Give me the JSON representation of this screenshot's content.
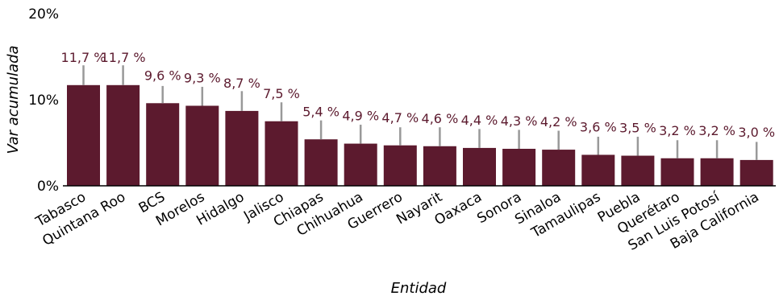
{
  "chart_data": {
    "type": "bar",
    "xlabel": "Entidad",
    "ylabel": "Var acumulada",
    "ylim": [
      0,
      20
    ],
    "yticks": [
      {
        "value": 0,
        "label": "0%"
      },
      {
        "value": 10,
        "label": "10%"
      },
      {
        "value": 20,
        "label": "20%"
      }
    ],
    "grid": false,
    "bar_color": "#5c1a2e",
    "errorbar_color": "#999999",
    "categories": [
      "Tabasco",
      "Quintana Roo",
      "BCS",
      "Morelos",
      "Hidalgo",
      "Jalisco",
      "Chiapas",
      "Chihuahua",
      "Guerrero",
      "Nayarit",
      "Oaxaca",
      "Sonora",
      "Sinaloa",
      "Tamaulipas",
      "Puebla",
      "Querétaro",
      "San Luis Potosí",
      "Baja California"
    ],
    "values": [
      11.7,
      11.7,
      9.6,
      9.3,
      8.7,
      7.5,
      5.4,
      4.9,
      4.7,
      4.6,
      4.4,
      4.3,
      4.2,
      3.6,
      3.5,
      3.2,
      3.2,
      3.0
    ],
    "error_upper": [
      14.0,
      14.0,
      11.6,
      11.5,
      11.0,
      9.7,
      7.6,
      7.1,
      6.8,
      6.8,
      6.6,
      6.5,
      6.4,
      5.7,
      5.7,
      5.3,
      5.3,
      5.1
    ],
    "data_labels": [
      "11,7 %",
      "11,7 %",
      "9,6 %",
      "9,3 %",
      "8,7 %",
      "7,5 %",
      "5,4 %",
      "4,9 %",
      "4,7 %",
      "4,6 %",
      "4,4 %",
      "4,3 %",
      "4,2 %",
      "3,6 %",
      "3,5 %",
      "3,2 %",
      "3,2 %",
      "3,0 %"
    ]
  }
}
